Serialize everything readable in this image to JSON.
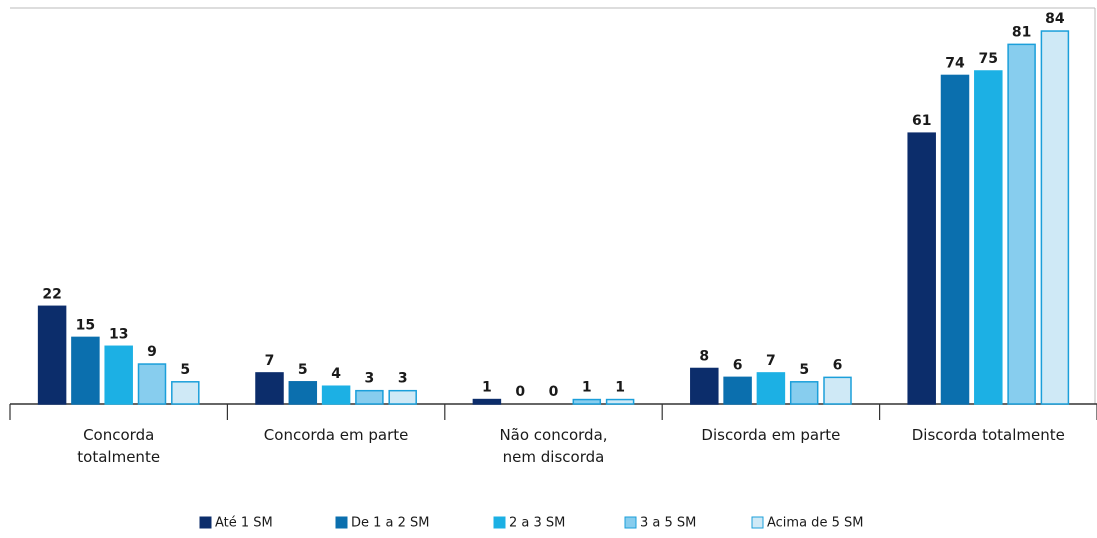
{
  "chart_data": {
    "type": "bar",
    "categories": [
      "Concorda\ntotalmente",
      "Concorda em parte",
      "Não concorda,\nnem discorda",
      "Discorda em parte",
      "Discorda totalmente"
    ],
    "series": [
      {
        "name": "Até 1 SM",
        "color": "#0c2d6b",
        "values": [
          22,
          7,
          1,
          8,
          61
        ]
      },
      {
        "name": "De 1 a 2 SM",
        "color": "#0b6fae",
        "values": [
          15,
          5,
          0,
          6,
          74
        ]
      },
      {
        "name": "2 a 3 SM",
        "color": "#1cb0e4",
        "values": [
          13,
          4,
          0,
          7,
          75
        ]
      },
      {
        "name": "3 a 5 SM",
        "color": "#87cdee",
        "values": [
          9,
          3,
          1,
          5,
          81
        ]
      },
      {
        "name": "Acima de 5 SM",
        "color": "#cfe9f6",
        "values": [
          5,
          3,
          1,
          6,
          84
        ]
      }
    ]
  }
}
